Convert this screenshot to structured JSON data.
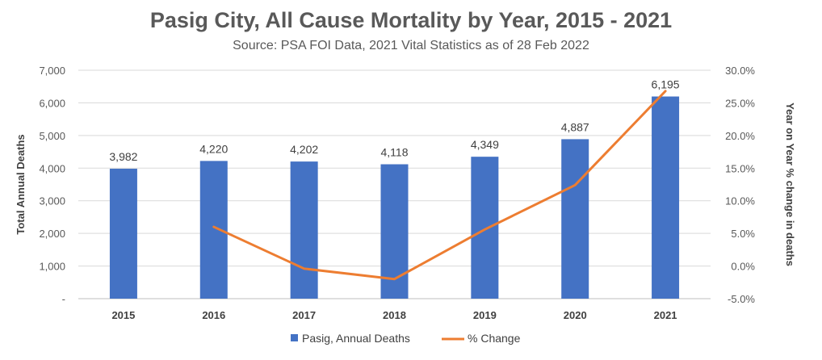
{
  "title": "Pasig City, All Cause Mortality by Year, 2015 - 2021",
  "subtitle": "Source: PSA FOI Data, 2021 Vital Statistics as of 28 Feb 2022",
  "chart_data": {
    "type": "bar",
    "title": "Pasig City, All Cause Mortality by Year, 2015 - 2021",
    "subtitle": "Source: PSA FOI Data, 2021 Vital Statistics as of 28 Feb 2022",
    "categories": [
      "2015",
      "2016",
      "2017",
      "2018",
      "2019",
      "2020",
      "2021"
    ],
    "series": [
      {
        "name": "Pasig, Annual Deaths",
        "type": "bar",
        "axis": "left",
        "color": "#4472C4",
        "values": [
          3982,
          4220,
          4202,
          4118,
          4349,
          4887,
          6195
        ],
        "labels": [
          "3,982",
          "4,220",
          "4,202",
          "4,118",
          "4,349",
          "4,887",
          "6,195"
        ]
      },
      {
        "name": "% Change",
        "type": "line",
        "axis": "right",
        "color": "#ED7D31",
        "values": [
          null,
          6.0,
          -0.4,
          -2.0,
          5.6,
          12.4,
          26.8
        ]
      }
    ],
    "ylabel": "Total Annual Deaths",
    "ylim": [
      0,
      7000
    ],
    "yticks": [
      "-",
      "1,000",
      "2,000",
      "3,000",
      "4,000",
      "5,000",
      "6,000",
      "7,000"
    ],
    "y2label": "Year on Year % change in deaths",
    "y2lim": [
      -5,
      30
    ],
    "y2ticks": [
      "-5.0%",
      "0.0%",
      "5.0%",
      "10.0%",
      "15.0%",
      "20.0%",
      "25.0%",
      "30.0%"
    ],
    "grid": true,
    "legend": "bottom"
  }
}
